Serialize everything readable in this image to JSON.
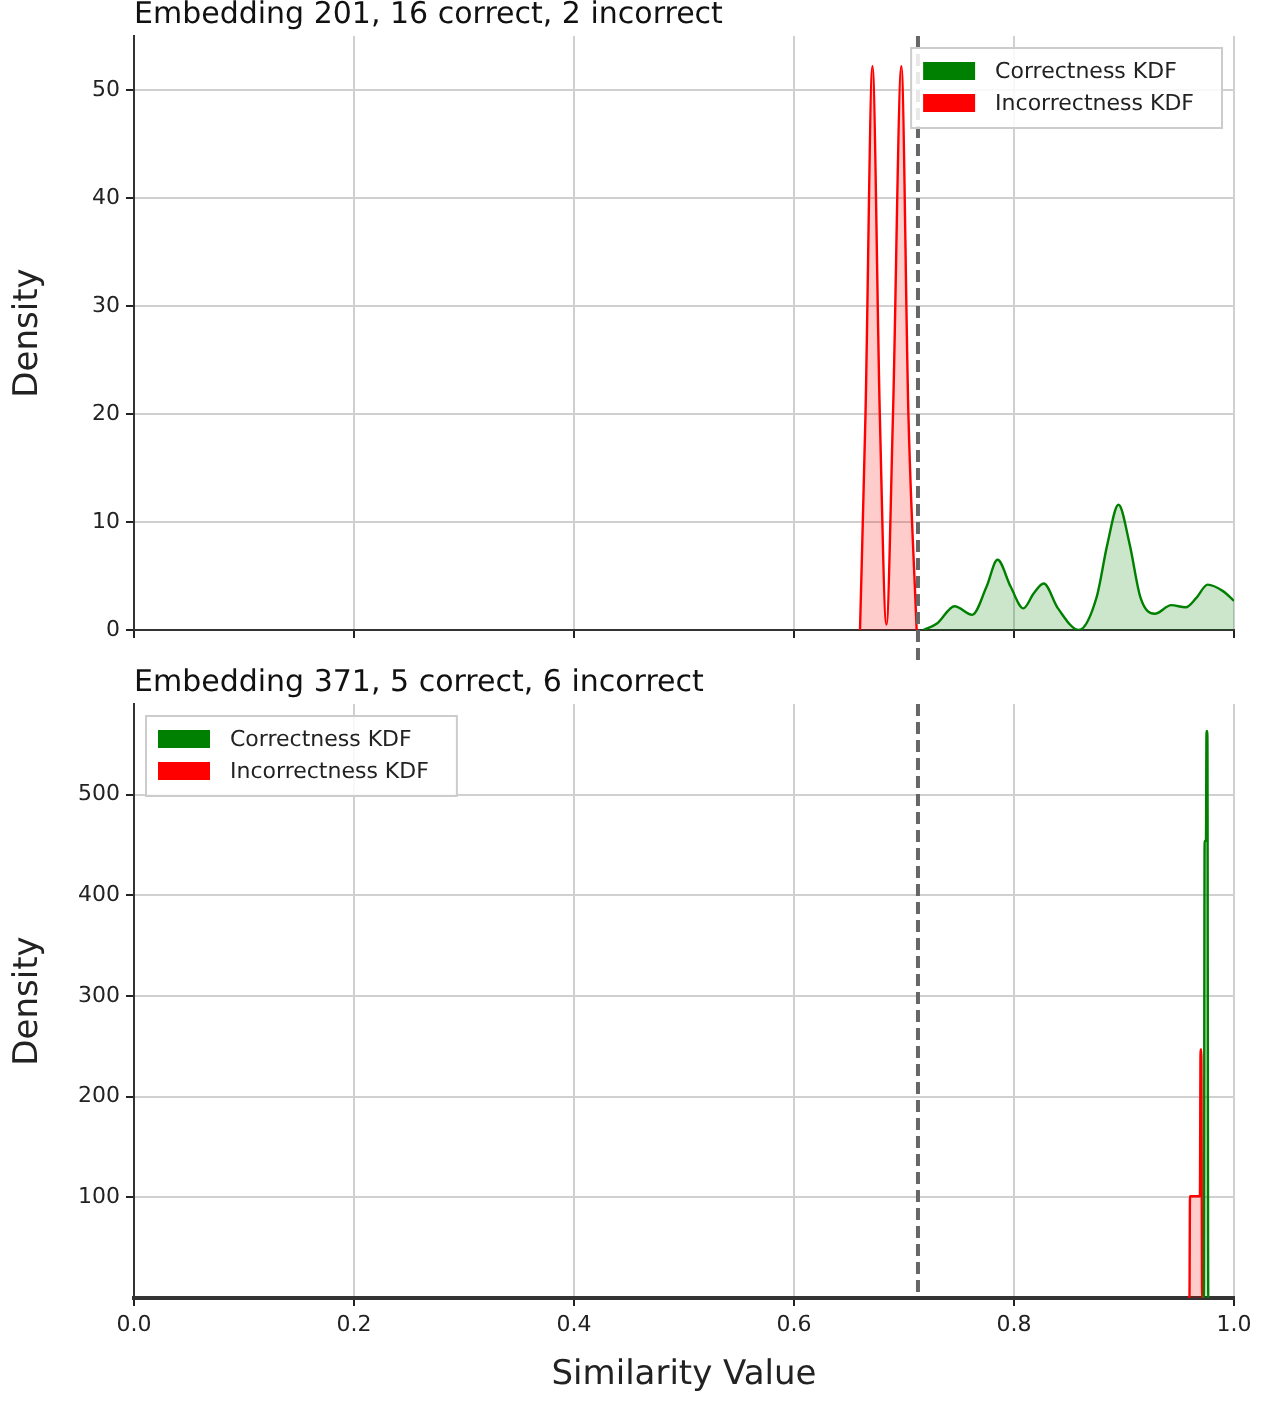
{
  "chart_data": [
    {
      "type": "area",
      "title": "Embedding 201, 16 correct, 2 incorrect",
      "ylabel": "Density",
      "xlim": [
        0,
        1
      ],
      "ylim": [
        0,
        55
      ],
      "xticks": [
        {
          "value": 0,
          "label": null
        },
        {
          "value": 0.2,
          "label": null
        },
        {
          "value": 0.4,
          "label": null
        },
        {
          "value": 0.6,
          "label": null
        },
        {
          "value": 0.8,
          "label": null
        },
        {
          "value": 1,
          "label": null
        }
      ],
      "yticks": [
        0,
        10,
        20,
        30,
        40,
        50
      ],
      "tick_labels": "y",
      "grid": true,
      "legend": "top right",
      "series": [
        {
          "name": "Correctness KDF",
          "color": "#008000",
          "x": [
            0.7176,
            0.73,
            0.746,
            0.762,
            0.775,
            0.785,
            0.797,
            0.8085,
            0.818,
            0.827,
            0.84,
            0.859,
            0.875,
            0.885,
            0.895,
            0.905,
            0.915,
            0.928,
            0.943,
            0.956,
            0.966,
            0.976,
            0.99,
            1.0
          ],
          "values": [
            0,
            0.6,
            2.2,
            1.4,
            4,
            6.5,
            4,
            2,
            3.4,
            4.3,
            2,
            0,
            3,
            8,
            11.6,
            8,
            3,
            1.5,
            2.3,
            2.1,
            3,
            4.2,
            3.6,
            2.7
          ]
        },
        {
          "name": "Incorrectness KDF",
          "color": "#ff0000",
          "x": [
            0.66,
            0.665,
            0.6713,
            0.678,
            0.684,
            0.69,
            0.6976,
            0.704,
            0.7115
          ],
          "values": [
            0,
            20,
            52.2,
            20,
            0.5,
            20,
            52.2,
            20,
            0
          ]
        }
      ],
      "ref_lines": [
        {
          "axis": "x",
          "value": 0.7127,
          "color": "#666666",
          "line_style": "dashed"
        }
      ]
    },
    {
      "type": "area",
      "title": "Embedding 371, 5 correct, 6 incorrect",
      "xlabel": "Similarity Value",
      "ylabel": "Density",
      "xlim": [
        0,
        1
      ],
      "ylim": [
        0,
        590
      ],
      "xticks": [
        {
          "value": 0,
          "label": "0.0"
        },
        {
          "value": 0.2,
          "label": "0.2"
        },
        {
          "value": 0.4,
          "label": "0.4"
        },
        {
          "value": 0.6,
          "label": "0.6"
        },
        {
          "value": 0.8,
          "label": "0.8"
        },
        {
          "value": 1,
          "label": "1.0"
        }
      ],
      "yticks": [
        100,
        200,
        300,
        400,
        500
      ],
      "grid": true,
      "legend": "top left",
      "series": [
        {
          "name": "Correctness KDF",
          "color": "#008000",
          "x": [
            0.9715,
            0.9726,
            0.9733,
            0.9745,
            0.975,
            0.9758,
            0.9766,
            0.9775
          ],
          "values": [
            0,
            0,
            454,
            454,
            563,
            563,
            0,
            0
          ]
        },
        {
          "name": "Incorrectness KDF",
          "color": "#ff0000",
          "x": [
            0.958,
            0.9595,
            0.96,
            0.969,
            0.9696,
            0.9703,
            0.971,
            0.9718
          ],
          "values": [
            0,
            0,
            101,
            101,
            247,
            247,
            0,
            0
          ]
        }
      ],
      "ref_lines": [
        {
          "axis": "x",
          "value": 0.7127,
          "color": "#666666",
          "line_style": "dashed"
        }
      ]
    }
  ]
}
